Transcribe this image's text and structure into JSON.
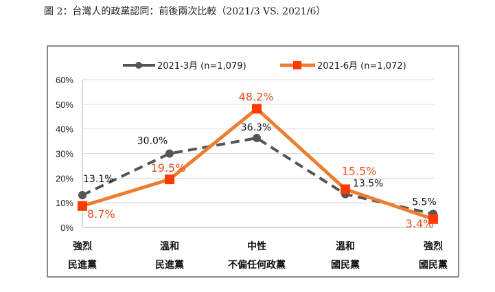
{
  "figure_title": "圖 2：台灣人的政黨認同：前後兩次比較（2021/3 VS. 2021/6）",
  "colors": {
    "series_march": "#555555",
    "series_june": "#EE7D31",
    "label_june": "#E8501C",
    "grid": "#d9d9d9"
  },
  "chart_data": {
    "type": "line",
    "categories": [
      [
        "強烈",
        "民進黨"
      ],
      [
        "溫和",
        "民進黨"
      ],
      [
        "中性",
        "不偏任何政黨"
      ],
      [
        "溫和",
        "國民黨"
      ],
      [
        "強烈",
        "國民黨"
      ]
    ],
    "series": [
      {
        "name": "2021-3月 (n=1,079)",
        "values": [
          13.1,
          30.0,
          36.3,
          13.5,
          5.5
        ],
        "labels": [
          "13.1%",
          "30.0%",
          "36.3%",
          "13.5%",
          "5.5%"
        ],
        "style": "dashed",
        "marker": "circle"
      },
      {
        "name": "2021-6月 (n=1,072)",
        "values": [
          8.7,
          19.5,
          48.2,
          15.5,
          3.4
        ],
        "labels": [
          "8.7%",
          "19.5%",
          "48.2%",
          "15.5%",
          "3.4%"
        ],
        "style": "solid",
        "marker": "square"
      }
    ],
    "ylim": [
      0,
      60
    ],
    "yticks": [
      "0%",
      "10%",
      "20%",
      "30%",
      "40%",
      "50%",
      "60%"
    ],
    "grid": true,
    "legend_position": "top"
  }
}
